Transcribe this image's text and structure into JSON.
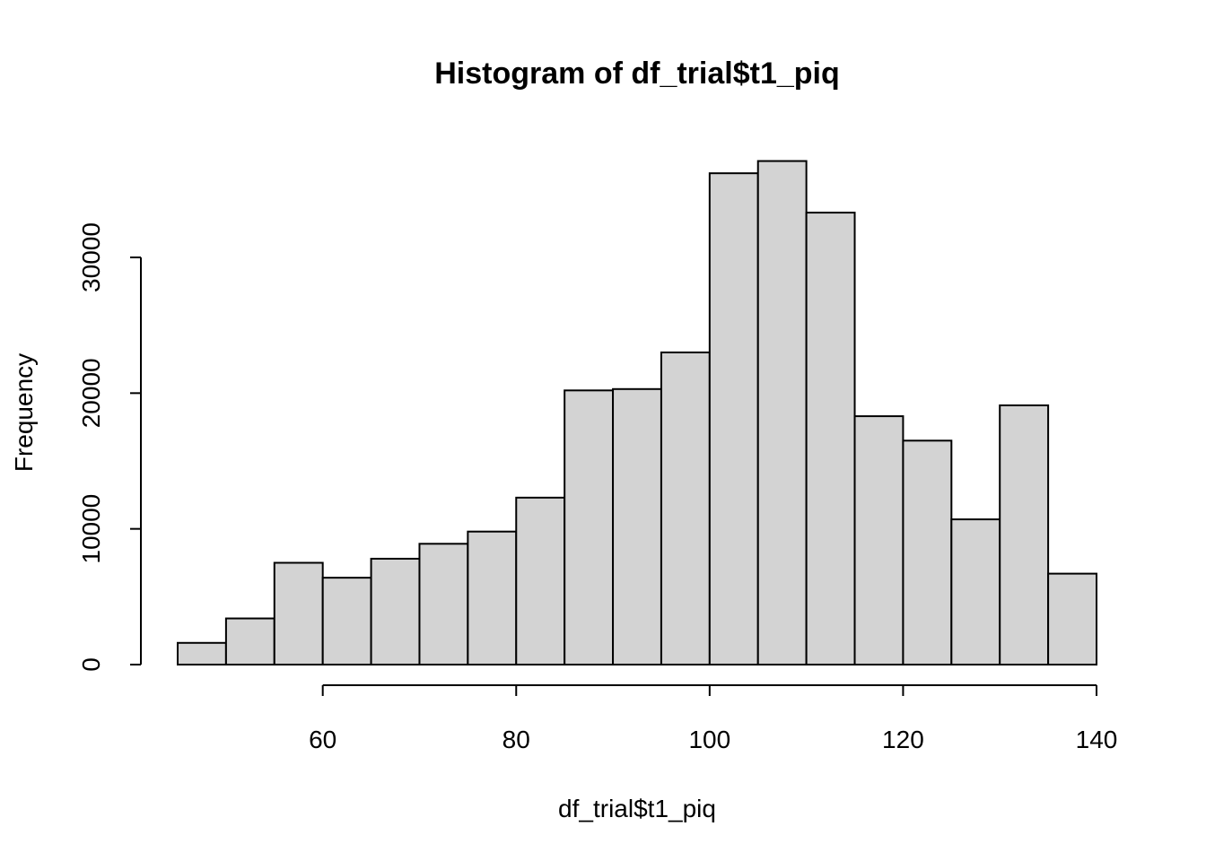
{
  "chart_data": {
    "type": "bar",
    "title": "Histogram of df_trial$t1_piq",
    "xlabel": "df_trial$t1_piq",
    "ylabel": "Frequency",
    "bins": [
      {
        "start": 45,
        "end": 50,
        "count": 1600
      },
      {
        "start": 50,
        "end": 55,
        "count": 3400
      },
      {
        "start": 55,
        "end": 60,
        "count": 7500
      },
      {
        "start": 60,
        "end": 65,
        "count": 6400
      },
      {
        "start": 65,
        "end": 70,
        "count": 7800
      },
      {
        "start": 70,
        "end": 75,
        "count": 8900
      },
      {
        "start": 75,
        "end": 80,
        "count": 9800
      },
      {
        "start": 80,
        "end": 85,
        "count": 12300
      },
      {
        "start": 85,
        "end": 90,
        "count": 20200
      },
      {
        "start": 90,
        "end": 95,
        "count": 20300
      },
      {
        "start": 95,
        "end": 100,
        "count": 23000
      },
      {
        "start": 100,
        "end": 105,
        "count": 36200
      },
      {
        "start": 105,
        "end": 110,
        "count": 37100
      },
      {
        "start": 110,
        "end": 115,
        "count": 33300
      },
      {
        "start": 115,
        "end": 120,
        "count": 18300
      },
      {
        "start": 120,
        "end": 125,
        "count": 16500
      },
      {
        "start": 125,
        "end": 130,
        "count": 10700
      },
      {
        "start": 130,
        "end": 135,
        "count": 19100
      },
      {
        "start": 135,
        "end": 140,
        "count": 6700
      }
    ],
    "x_ticks": [
      60,
      80,
      100,
      120,
      140
    ],
    "y_ticks": [
      0,
      10000,
      20000,
      30000
    ],
    "xlim": [
      45,
      140
    ],
    "ylim": [
      0,
      37100
    ],
    "grid": false,
    "bar_fill": "#d3d3d3",
    "bar_stroke": "#000000"
  }
}
